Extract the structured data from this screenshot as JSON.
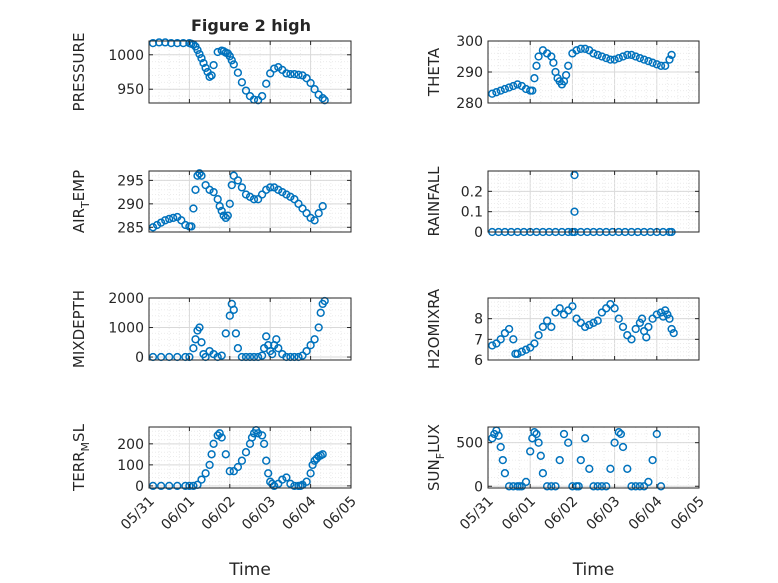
{
  "figure": {
    "title": "Figure 2 high",
    "marker_color": "#0072BD",
    "xlabel": "Time",
    "xticks": [
      "05/31",
      "06/01",
      "06/02",
      "06/03",
      "06/04",
      "06/05"
    ],
    "xlim_days": [
      0,
      5
    ]
  },
  "chart_data": [
    {
      "type": "scatter",
      "title": "",
      "ylabel": "PRESSURE",
      "ylim": [
        930,
        1020
      ],
      "yticks": [
        950,
        1000
      ],
      "grid": true,
      "x_units": "days since 05/31",
      "x": [
        0.1,
        0.25,
        0.4,
        0.55,
        0.7,
        0.85,
        1.0,
        1.05,
        1.1,
        1.15,
        1.2,
        1.25,
        1.3,
        1.35,
        1.4,
        1.45,
        1.5,
        1.55,
        1.6,
        1.7,
        1.8,
        1.85,
        1.9,
        1.95,
        2.0,
        2.05,
        2.1,
        2.2,
        2.3,
        2.4,
        2.5,
        2.6,
        2.7,
        2.8,
        2.9,
        3.0,
        3.1,
        3.2,
        3.3,
        3.4,
        3.5,
        3.6,
        3.7,
        3.8,
        3.9,
        4.0,
        4.1,
        4.2,
        4.3,
        4.35
      ],
      "y": [
        1017,
        1018,
        1018,
        1017,
        1017,
        1017,
        1017,
        1016,
        1015,
        1012,
        1007,
        1001,
        995,
        988,
        981,
        975,
        968,
        970,
        985,
        1004,
        1006,
        1005,
        1003,
        1002,
        998,
        992,
        986,
        974,
        960,
        948,
        940,
        935,
        934,
        940,
        958,
        973,
        980,
        982,
        978,
        973,
        972,
        972,
        971,
        970,
        966,
        959,
        950,
        942,
        937,
        934
      ]
    },
    {
      "type": "scatter",
      "title": "",
      "ylabel": "THETA",
      "ylim": [
        280,
        300
      ],
      "yticks": [
        280,
        290,
        300
      ],
      "grid": true,
      "x_units": "days since 05/31",
      "x": [
        0.1,
        0.2,
        0.3,
        0.4,
        0.5,
        0.6,
        0.7,
        0.8,
        0.9,
        1.0,
        1.05,
        1.1,
        1.15,
        1.2,
        1.3,
        1.4,
        1.5,
        1.55,
        1.6,
        1.65,
        1.7,
        1.75,
        1.8,
        1.85,
        1.9,
        2.0,
        2.1,
        2.2,
        2.3,
        2.4,
        2.5,
        2.6,
        2.7,
        2.8,
        2.9,
        3.0,
        3.1,
        3.2,
        3.3,
        3.4,
        3.5,
        3.6,
        3.7,
        3.8,
        3.9,
        4.0,
        4.1,
        4.2,
        4.3,
        4.35
      ],
      "y": [
        283,
        283.5,
        284,
        284.5,
        285,
        285.5,
        286,
        285.5,
        284.5,
        284,
        284,
        288,
        292,
        295,
        297,
        296,
        295,
        293,
        290,
        288,
        287,
        286,
        287,
        289,
        292,
        296,
        297,
        297.5,
        297.5,
        297,
        296,
        295.5,
        295,
        294.5,
        294,
        294,
        294.5,
        295,
        295.5,
        295.5,
        295,
        294.5,
        294,
        293.5,
        293,
        292.5,
        292,
        292,
        294,
        295.5
      ]
    },
    {
      "type": "scatter",
      "title": "",
      "ylabel": "AIR_TEMP",
      "ylim": [
        284,
        297
      ],
      "yticks": [
        285,
        290,
        295
      ],
      "grid": true,
      "x_units": "days since 05/31",
      "x": [
        0.1,
        0.2,
        0.3,
        0.4,
        0.5,
        0.6,
        0.7,
        0.8,
        0.9,
        1.0,
        1.05,
        1.1,
        1.15,
        1.2,
        1.25,
        1.3,
        1.4,
        1.5,
        1.6,
        1.7,
        1.75,
        1.8,
        1.85,
        1.9,
        1.95,
        2.0,
        2.05,
        2.1,
        2.2,
        2.3,
        2.4,
        2.5,
        2.6,
        2.7,
        2.8,
        2.9,
        3.0,
        3.1,
        3.2,
        3.3,
        3.4,
        3.5,
        3.6,
        3.7,
        3.8,
        3.9,
        4.0,
        4.1,
        4.2,
        4.3
      ],
      "y": [
        285,
        285.5,
        286,
        286.5,
        286.8,
        287,
        287.2,
        286.5,
        285.5,
        285.2,
        285.2,
        289,
        293,
        296,
        296.5,
        296,
        294,
        293,
        292.5,
        291,
        289.5,
        288.5,
        287.5,
        287,
        287.5,
        290,
        294,
        296,
        295,
        293.5,
        292,
        291.5,
        291,
        291,
        292,
        293,
        293.5,
        293.5,
        293,
        292.5,
        292,
        291.5,
        291,
        290,
        289,
        288,
        287,
        286.5,
        288,
        289.5
      ]
    },
    {
      "type": "scatter",
      "title": "",
      "ylabel": "RAINFALL",
      "ylim": [
        0,
        0.3
      ],
      "yticks": [
        0,
        0.1,
        0.2
      ],
      "grid": true,
      "x_units": "days since 05/31",
      "x": [
        0.1,
        0.25,
        0.4,
        0.55,
        0.7,
        0.85,
        1.0,
        1.15,
        1.3,
        1.45,
        1.6,
        1.75,
        1.9,
        2.0,
        2.05,
        2.05,
        2.05,
        2.2,
        2.35,
        2.5,
        2.65,
        2.8,
        2.95,
        3.1,
        3.25,
        3.4,
        3.55,
        3.7,
        3.85,
        4.0,
        4.15,
        4.3,
        4.35
      ],
      "y": [
        0,
        0,
        0,
        0,
        0,
        0,
        0,
        0,
        0,
        0,
        0,
        0,
        0,
        0,
        0.28,
        0.1,
        0,
        0,
        0,
        0,
        0,
        0,
        0,
        0,
        0,
        0,
        0,
        0,
        0,
        0,
        0,
        0,
        0
      ]
    },
    {
      "type": "scatter",
      "title": "",
      "ylabel": "MIXDEPTH",
      "ylim": [
        -100,
        2000
      ],
      "yticks": [
        0,
        1000,
        2000
      ],
      "grid": true,
      "x_units": "days since 05/31",
      "x": [
        0.1,
        0.3,
        0.5,
        0.7,
        0.9,
        1.0,
        1.1,
        1.15,
        1.2,
        1.25,
        1.3,
        1.35,
        1.4,
        1.5,
        1.6,
        1.7,
        1.8,
        1.9,
        2.0,
        2.05,
        2.1,
        2.15,
        2.2,
        2.3,
        2.4,
        2.5,
        2.6,
        2.7,
        2.8,
        2.85,
        2.9,
        2.95,
        3.0,
        3.05,
        3.1,
        3.15,
        3.2,
        3.3,
        3.4,
        3.5,
        3.6,
        3.7,
        3.8,
        3.9,
        4.0,
        4.1,
        4.2,
        4.25,
        4.3,
        4.35
      ],
      "y": [
        0,
        0,
        0,
        0,
        0,
        0,
        300,
        600,
        900,
        1000,
        500,
        100,
        0,
        200,
        100,
        0,
        50,
        800,
        1400,
        1800,
        1600,
        800,
        300,
        0,
        0,
        0,
        0,
        0,
        50,
        300,
        700,
        400,
        200,
        100,
        400,
        600,
        300,
        100,
        0,
        0,
        0,
        0,
        50,
        200,
        400,
        600,
        1000,
        1500,
        1800,
        1900
      ]
    },
    {
      "type": "scatter",
      "title": "",
      "ylabel": "H2OMIXRA",
      "ylim": [
        6,
        9
      ],
      "yticks": [
        6,
        7,
        8
      ],
      "grid": true,
      "x_units": "days since 05/31",
      "x": [
        0.1,
        0.2,
        0.3,
        0.4,
        0.5,
        0.6,
        0.65,
        0.7,
        0.8,
        0.9,
        1.0,
        1.1,
        1.2,
        1.3,
        1.4,
        1.5,
        1.6,
        1.7,
        1.8,
        1.9,
        2.0,
        2.1,
        2.2,
        2.3,
        2.4,
        2.5,
        2.6,
        2.7,
        2.8,
        2.9,
        3.0,
        3.1,
        3.2,
        3.3,
        3.4,
        3.5,
        3.6,
        3.65,
        3.7,
        3.75,
        3.8,
        3.9,
        4.0,
        4.1,
        4.15,
        4.2,
        4.25,
        4.3,
        4.35,
        4.4
      ],
      "y": [
        6.7,
        6.8,
        7.0,
        7.3,
        7.5,
        7.0,
        6.3,
        6.3,
        6.4,
        6.5,
        6.6,
        6.8,
        7.2,
        7.6,
        7.9,
        7.6,
        8.3,
        8.5,
        8.2,
        8.4,
        8.6,
        8.0,
        7.8,
        7.6,
        7.7,
        7.8,
        7.9,
        8.3,
        8.5,
        8.7,
        8.5,
        8.0,
        7.6,
        7.2,
        7.0,
        7.5,
        7.8,
        8.0,
        7.4,
        7.1,
        7.6,
        8.0,
        8.2,
        8.3,
        8.1,
        8.4,
        8.2,
        8.0,
        7.5,
        7.3
      ]
    },
    {
      "type": "scatter",
      "title": "",
      "ylabel": "TERR_MSL",
      "ylim": [
        -10,
        280
      ],
      "yticks": [
        0,
        100,
        200
      ],
      "grid": true,
      "x_units": "days since 05/31",
      "x": [
        0.1,
        0.3,
        0.5,
        0.7,
        0.9,
        1.0,
        1.1,
        1.2,
        1.3,
        1.4,
        1.5,
        1.55,
        1.6,
        1.7,
        1.75,
        1.8,
        1.9,
        2.0,
        2.1,
        2.2,
        2.3,
        2.4,
        2.5,
        2.55,
        2.6,
        2.65,
        2.7,
        2.8,
        2.85,
        2.9,
        2.95,
        3.0,
        3.05,
        3.1,
        3.2,
        3.3,
        3.4,
        3.5,
        3.6,
        3.7,
        3.75,
        3.8,
        3.9,
        4.0,
        4.05,
        4.1,
        4.15,
        4.2,
        4.25,
        4.3
      ],
      "y": [
        0,
        0,
        0,
        0,
        0,
        0,
        0,
        5,
        30,
        60,
        100,
        150,
        200,
        240,
        250,
        230,
        150,
        70,
        70,
        90,
        120,
        160,
        200,
        230,
        250,
        265,
        250,
        240,
        200,
        120,
        60,
        20,
        10,
        0,
        10,
        30,
        40,
        10,
        0,
        0,
        0,
        5,
        20,
        60,
        100,
        120,
        130,
        140,
        145,
        150
      ]
    },
    {
      "type": "scatter",
      "title": "",
      "ylabel": "SUN_FLUX",
      "ylim": [
        -20,
        680
      ],
      "yticks": [
        0,
        500
      ],
      "grid": true,
      "x_units": "days since 05/31",
      "x": [
        0.1,
        0.15,
        0.2,
        0.25,
        0.3,
        0.35,
        0.4,
        0.5,
        0.6,
        0.7,
        0.75,
        0.8,
        0.9,
        1.0,
        1.05,
        1.1,
        1.15,
        1.2,
        1.25,
        1.3,
        1.4,
        1.5,
        1.6,
        1.7,
        1.8,
        1.9,
        2.0,
        2.1,
        2.15,
        2.2,
        2.3,
        2.4,
        2.5,
        2.6,
        2.7,
        2.8,
        2.9,
        3.0,
        3.1,
        3.15,
        3.2,
        3.3,
        3.4,
        3.5,
        3.6,
        3.7,
        3.8,
        3.9,
        4.0,
        4.1
      ],
      "y": [
        550,
        600,
        640,
        580,
        450,
        300,
        150,
        0,
        0,
        0,
        0,
        0,
        50,
        400,
        550,
        620,
        600,
        500,
        350,
        150,
        0,
        0,
        0,
        300,
        600,
        500,
        0,
        0,
        0,
        300,
        550,
        200,
        0,
        0,
        0,
        0,
        200,
        500,
        620,
        600,
        450,
        200,
        0,
        0,
        0,
        0,
        50,
        300,
        600,
        0
      ]
    }
  ]
}
